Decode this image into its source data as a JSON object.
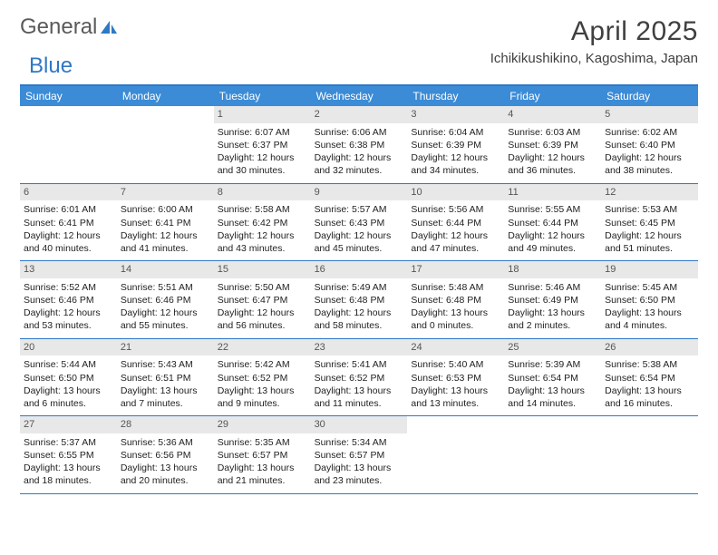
{
  "colors": {
    "accent": "#2f78c4",
    "header_bg": "#3b8bd6",
    "daynum_bg": "#e8e8e8",
    "text": "#404040",
    "body_text": "#222222",
    "background": "#ffffff"
  },
  "typography": {
    "title_fontsize": 30,
    "location_fontsize": 15,
    "dow_fontsize": 12,
    "cell_fontsize": 10.5,
    "logo_fontsize": 24
  },
  "logo": {
    "part1": "General",
    "part2": "Blue"
  },
  "title": {
    "month": "April 2025",
    "location": "Ichikikushikino, Kagoshima, Japan"
  },
  "dow": [
    "Sunday",
    "Monday",
    "Tuesday",
    "Wednesday",
    "Thursday",
    "Friday",
    "Saturday"
  ],
  "calendar": {
    "type": "table",
    "columns": 7,
    "rows": 5,
    "cell_layout": "grid",
    "weeks": [
      [
        {
          "day": "",
          "sunrise": "",
          "sunset": "",
          "daylight1": "",
          "daylight2": "",
          "empty": true
        },
        {
          "day": "",
          "sunrise": "",
          "sunset": "",
          "daylight1": "",
          "daylight2": "",
          "empty": true
        },
        {
          "day": "1",
          "sunrise": "Sunrise: 6:07 AM",
          "sunset": "Sunset: 6:37 PM",
          "daylight1": "Daylight: 12 hours",
          "daylight2": "and 30 minutes."
        },
        {
          "day": "2",
          "sunrise": "Sunrise: 6:06 AM",
          "sunset": "Sunset: 6:38 PM",
          "daylight1": "Daylight: 12 hours",
          "daylight2": "and 32 minutes."
        },
        {
          "day": "3",
          "sunrise": "Sunrise: 6:04 AM",
          "sunset": "Sunset: 6:39 PM",
          "daylight1": "Daylight: 12 hours",
          "daylight2": "and 34 minutes."
        },
        {
          "day": "4",
          "sunrise": "Sunrise: 6:03 AM",
          "sunset": "Sunset: 6:39 PM",
          "daylight1": "Daylight: 12 hours",
          "daylight2": "and 36 minutes."
        },
        {
          "day": "5",
          "sunrise": "Sunrise: 6:02 AM",
          "sunset": "Sunset: 6:40 PM",
          "daylight1": "Daylight: 12 hours",
          "daylight2": "and 38 minutes."
        }
      ],
      [
        {
          "day": "6",
          "sunrise": "Sunrise: 6:01 AM",
          "sunset": "Sunset: 6:41 PM",
          "daylight1": "Daylight: 12 hours",
          "daylight2": "and 40 minutes."
        },
        {
          "day": "7",
          "sunrise": "Sunrise: 6:00 AM",
          "sunset": "Sunset: 6:41 PM",
          "daylight1": "Daylight: 12 hours",
          "daylight2": "and 41 minutes."
        },
        {
          "day": "8",
          "sunrise": "Sunrise: 5:58 AM",
          "sunset": "Sunset: 6:42 PM",
          "daylight1": "Daylight: 12 hours",
          "daylight2": "and 43 minutes."
        },
        {
          "day": "9",
          "sunrise": "Sunrise: 5:57 AM",
          "sunset": "Sunset: 6:43 PM",
          "daylight1": "Daylight: 12 hours",
          "daylight2": "and 45 minutes."
        },
        {
          "day": "10",
          "sunrise": "Sunrise: 5:56 AM",
          "sunset": "Sunset: 6:44 PM",
          "daylight1": "Daylight: 12 hours",
          "daylight2": "and 47 minutes."
        },
        {
          "day": "11",
          "sunrise": "Sunrise: 5:55 AM",
          "sunset": "Sunset: 6:44 PM",
          "daylight1": "Daylight: 12 hours",
          "daylight2": "and 49 minutes."
        },
        {
          "day": "12",
          "sunrise": "Sunrise: 5:53 AM",
          "sunset": "Sunset: 6:45 PM",
          "daylight1": "Daylight: 12 hours",
          "daylight2": "and 51 minutes."
        }
      ],
      [
        {
          "day": "13",
          "sunrise": "Sunrise: 5:52 AM",
          "sunset": "Sunset: 6:46 PM",
          "daylight1": "Daylight: 12 hours",
          "daylight2": "and 53 minutes."
        },
        {
          "day": "14",
          "sunrise": "Sunrise: 5:51 AM",
          "sunset": "Sunset: 6:46 PM",
          "daylight1": "Daylight: 12 hours",
          "daylight2": "and 55 minutes."
        },
        {
          "day": "15",
          "sunrise": "Sunrise: 5:50 AM",
          "sunset": "Sunset: 6:47 PM",
          "daylight1": "Daylight: 12 hours",
          "daylight2": "and 56 minutes."
        },
        {
          "day": "16",
          "sunrise": "Sunrise: 5:49 AM",
          "sunset": "Sunset: 6:48 PM",
          "daylight1": "Daylight: 12 hours",
          "daylight2": "and 58 minutes."
        },
        {
          "day": "17",
          "sunrise": "Sunrise: 5:48 AM",
          "sunset": "Sunset: 6:48 PM",
          "daylight1": "Daylight: 13 hours",
          "daylight2": "and 0 minutes."
        },
        {
          "day": "18",
          "sunrise": "Sunrise: 5:46 AM",
          "sunset": "Sunset: 6:49 PM",
          "daylight1": "Daylight: 13 hours",
          "daylight2": "and 2 minutes."
        },
        {
          "day": "19",
          "sunrise": "Sunrise: 5:45 AM",
          "sunset": "Sunset: 6:50 PM",
          "daylight1": "Daylight: 13 hours",
          "daylight2": "and 4 minutes."
        }
      ],
      [
        {
          "day": "20",
          "sunrise": "Sunrise: 5:44 AM",
          "sunset": "Sunset: 6:50 PM",
          "daylight1": "Daylight: 13 hours",
          "daylight2": "and 6 minutes."
        },
        {
          "day": "21",
          "sunrise": "Sunrise: 5:43 AM",
          "sunset": "Sunset: 6:51 PM",
          "daylight1": "Daylight: 13 hours",
          "daylight2": "and 7 minutes."
        },
        {
          "day": "22",
          "sunrise": "Sunrise: 5:42 AM",
          "sunset": "Sunset: 6:52 PM",
          "daylight1": "Daylight: 13 hours",
          "daylight2": "and 9 minutes."
        },
        {
          "day": "23",
          "sunrise": "Sunrise: 5:41 AM",
          "sunset": "Sunset: 6:52 PM",
          "daylight1": "Daylight: 13 hours",
          "daylight2": "and 11 minutes."
        },
        {
          "day": "24",
          "sunrise": "Sunrise: 5:40 AM",
          "sunset": "Sunset: 6:53 PM",
          "daylight1": "Daylight: 13 hours",
          "daylight2": "and 13 minutes."
        },
        {
          "day": "25",
          "sunrise": "Sunrise: 5:39 AM",
          "sunset": "Sunset: 6:54 PM",
          "daylight1": "Daylight: 13 hours",
          "daylight2": "and 14 minutes."
        },
        {
          "day": "26",
          "sunrise": "Sunrise: 5:38 AM",
          "sunset": "Sunset: 6:54 PM",
          "daylight1": "Daylight: 13 hours",
          "daylight2": "and 16 minutes."
        }
      ],
      [
        {
          "day": "27",
          "sunrise": "Sunrise: 5:37 AM",
          "sunset": "Sunset: 6:55 PM",
          "daylight1": "Daylight: 13 hours",
          "daylight2": "and 18 minutes."
        },
        {
          "day": "28",
          "sunrise": "Sunrise: 5:36 AM",
          "sunset": "Sunset: 6:56 PM",
          "daylight1": "Daylight: 13 hours",
          "daylight2": "and 20 minutes."
        },
        {
          "day": "29",
          "sunrise": "Sunrise: 5:35 AM",
          "sunset": "Sunset: 6:57 PM",
          "daylight1": "Daylight: 13 hours",
          "daylight2": "and 21 minutes."
        },
        {
          "day": "30",
          "sunrise": "Sunrise: 5:34 AM",
          "sunset": "Sunset: 6:57 PM",
          "daylight1": "Daylight: 13 hours",
          "daylight2": "and 23 minutes."
        },
        {
          "day": "",
          "sunrise": "",
          "sunset": "",
          "daylight1": "",
          "daylight2": "",
          "empty": true
        },
        {
          "day": "",
          "sunrise": "",
          "sunset": "",
          "daylight1": "",
          "daylight2": "",
          "empty": true
        },
        {
          "day": "",
          "sunrise": "",
          "sunset": "",
          "daylight1": "",
          "daylight2": "",
          "empty": true
        }
      ]
    ]
  }
}
